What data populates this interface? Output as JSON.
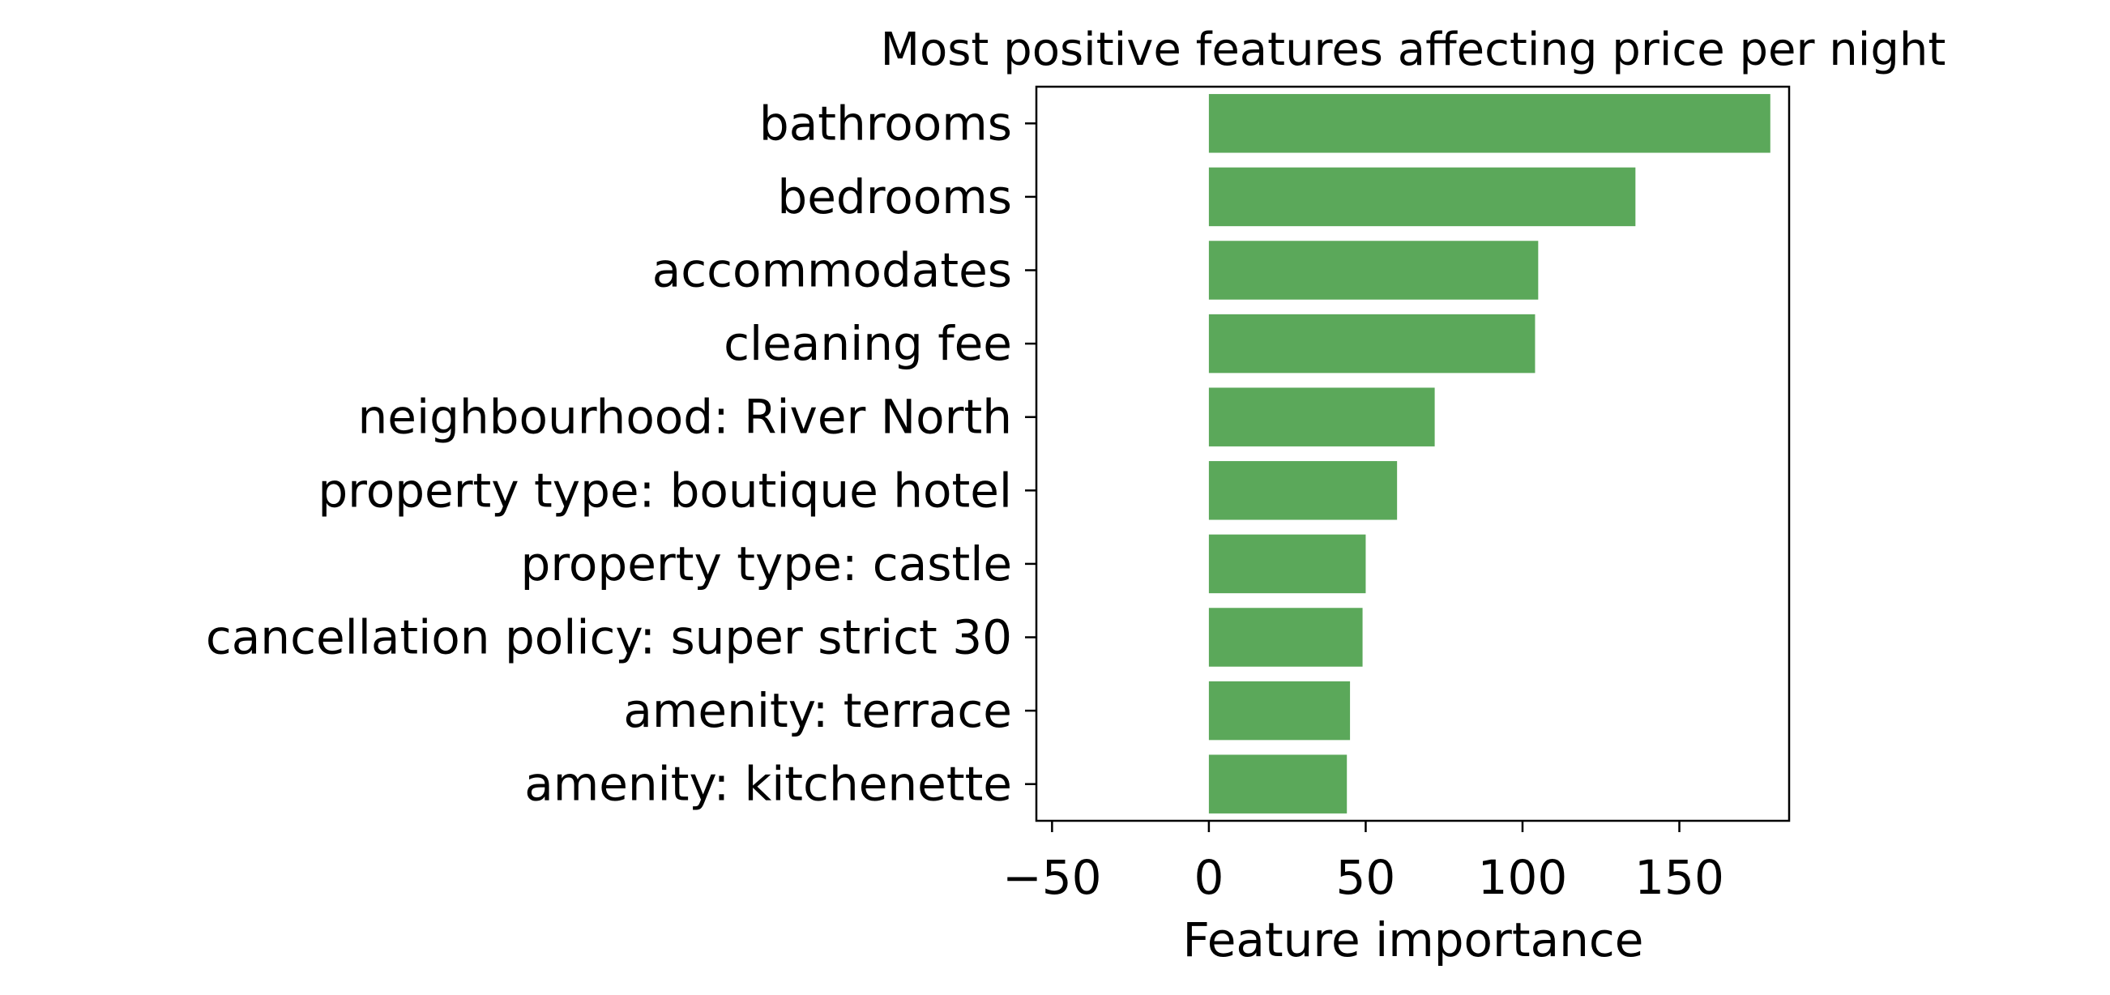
{
  "chart_data": {
    "type": "bar",
    "orientation": "horizontal",
    "title": "Most positive features affecting price per night",
    "xlabel": "Feature importance",
    "ylabel": "",
    "categories": [
      "bathrooms",
      "bedrooms",
      "accommodates",
      "cleaning fee",
      "neighbourhood: River North",
      "property type: boutique hotel",
      "property type: castle",
      "cancellation policy: super strict 30",
      "amenity: terrace",
      "amenity: kitchenette"
    ],
    "values": [
      179,
      136,
      105,
      104,
      72,
      60,
      50,
      49,
      45,
      44
    ],
    "xlim": [
      -55,
      185
    ],
    "xticks": [
      -50,
      0,
      50,
      100,
      150
    ],
    "xtick_labels": [
      "−50",
      "0",
      "50",
      "100",
      "150"
    ],
    "bar_color": "#5ba85a",
    "grid": false,
    "legend": "none"
  }
}
